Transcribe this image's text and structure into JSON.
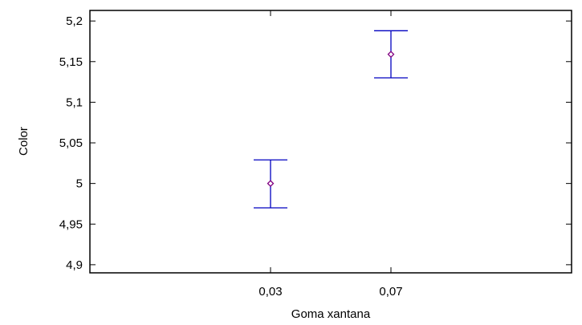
{
  "chart_data": {
    "type": "errorbar",
    "title": "",
    "xlabel": "Goma xantana",
    "ylabel": "Color",
    "categories": [
      "0,03",
      "0,07"
    ],
    "x_values": [
      0.03,
      0.07
    ],
    "xlim": [
      -0.03,
      0.13
    ],
    "ylim": [
      4.89,
      5.213
    ],
    "y_ticks": [
      4.9,
      4.95,
      5.0,
      5.05,
      5.1,
      5.15,
      5.2
    ],
    "y_tick_labels": [
      "4,9",
      "4,95",
      "5",
      "5,05",
      "5,1",
      "5,15",
      "5,2"
    ],
    "series": [
      {
        "means": [
          5.0,
          5.159
        ],
        "lower": [
          4.97,
          5.13
        ],
        "upper": [
          5.029,
          5.188
        ]
      }
    ],
    "colors": {
      "errorbar": "#0000c0",
      "marker_stroke": "#800080",
      "axis": "#000000"
    },
    "grid": false,
    "legend": "none"
  }
}
